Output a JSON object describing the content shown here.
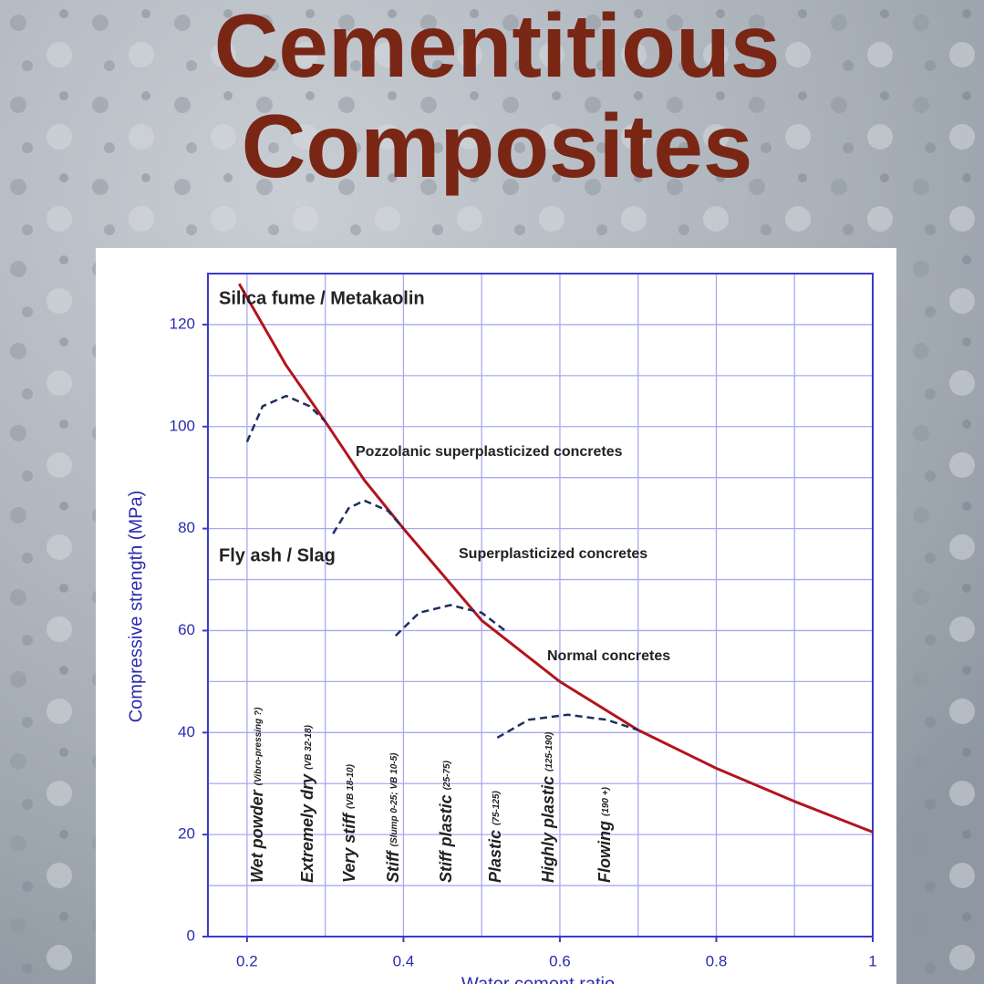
{
  "title_lines": [
    "Cementitious",
    "Composites"
  ],
  "chart_data": {
    "type": "line",
    "x_label": "Water cement ratio",
    "y_label": "Compressive strength (MPa)",
    "xlim": [
      0.15,
      1
    ],
    "ylim": [
      0,
      130
    ],
    "xticks": [
      0.2,
      0.4,
      0.6,
      0.8,
      1
    ],
    "yticks": [
      0,
      20,
      40,
      60,
      80,
      100,
      120
    ],
    "grid": true,
    "x_grid": [
      0.2,
      0.3,
      0.4,
      0.5,
      0.6,
      0.7,
      0.8,
      0.9
    ],
    "y_grid": [
      10,
      20,
      30,
      40,
      50,
      60,
      70,
      80,
      90,
      100,
      110,
      120
    ],
    "series": [
      {
        "color": "#b3141c",
        "style": "solid",
        "x": [
          0.19,
          0.25,
          0.3,
          0.35,
          0.4,
          0.5,
          0.6,
          0.7,
          0.8,
          0.9,
          1
        ],
        "values": [
          128,
          112,
          101,
          89.5,
          80,
          62,
          50,
          40.5,
          33,
          26.5,
          20.5
        ]
      },
      {
        "color": "#1f2f5e",
        "style": "dashed",
        "x": [
          0.2,
          0.22,
          0.25,
          0.28,
          0.3
        ],
        "values": [
          97,
          104,
          106,
          104,
          101
        ]
      },
      {
        "color": "#1f2f5e",
        "style": "dashed",
        "x": [
          0.31,
          0.33,
          0.35,
          0.38,
          0.4
        ],
        "values": [
          79,
          84,
          85.5,
          83.5,
          80
        ]
      },
      {
        "color": "#1f2f5e",
        "style": "dashed",
        "x": [
          0.39,
          0.42,
          0.46,
          0.5,
          0.53
        ],
        "values": [
          59,
          63.5,
          65,
          63.5,
          60
        ]
      },
      {
        "color": "#1f2f5e",
        "style": "dashed",
        "x": [
          0.52,
          0.56,
          0.61,
          0.66,
          0.7
        ],
        "values": [
          39,
          42.5,
          43.5,
          42.5,
          40.5
        ]
      }
    ],
    "annotations": [
      "Silica fume / Metakaolin",
      "Pozzolanic superplasticized concretes",
      "Fly ash / Slag",
      "Superplasticized concretes",
      "Normal concretes"
    ],
    "consistency_labels": [
      {
        "text": "Wet powder",
        "note": "(Vibro-pressing ?)"
      },
      {
        "text": "Extremely dry",
        "note": "(VB 32-18)"
      },
      {
        "text": "Very stiff",
        "note": "(VB 18-10)"
      },
      {
        "text": "Stiff",
        "note": "(Slump 0-25; VB 10-5)"
      },
      {
        "text": "Stiff plastic",
        "note": "(25-75)"
      },
      {
        "text": "Plastic",
        "note": "(75-125)"
      },
      {
        "text": "Highly plastic",
        "note": "(125-190)"
      },
      {
        "text": "Flowing",
        "note": "(190 +)"
      }
    ]
  }
}
